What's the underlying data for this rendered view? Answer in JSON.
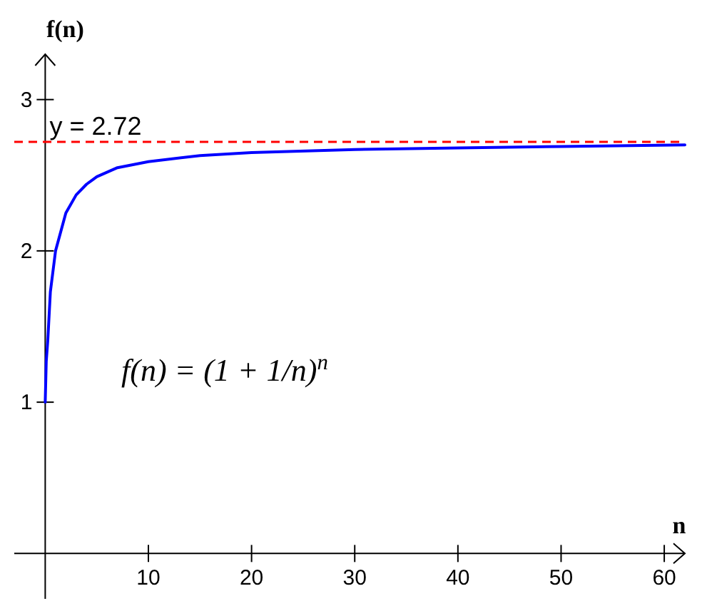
{
  "chart_data": {
    "type": "line",
    "xlabel": "n",
    "ylabel": "f(n)",
    "x": [
      0,
      0.1,
      0.25,
      0.5,
      1,
      2,
      3,
      4,
      5,
      7,
      10,
      15,
      20,
      30,
      40,
      50,
      62
    ],
    "series": [
      {
        "color": "#0000ff",
        "values": [
          1,
          1.27,
          1.41,
          1.73,
          2,
          2.25,
          2.37,
          2.44,
          2.49,
          2.55,
          2.59,
          2.63,
          2.65,
          2.67,
          2.68,
          2.69,
          2.7
        ]
      }
    ],
    "xlim": [
      -3,
      62
    ],
    "ylim": [
      -0.3,
      3.3
    ],
    "xticks": [
      10,
      20,
      30,
      40,
      50,
      60
    ],
    "yticks": [
      1,
      2,
      3
    ],
    "ref_lines": [
      {
        "axis": "y",
        "value": 2.72,
        "label": "y = 2.72",
        "color": "#ff0000",
        "line_style": "dashed"
      }
    ],
    "annotations": [
      "f(n) = (1 + 1/n)$^{n}$"
    ],
    "grid": false,
    "marker": "none",
    "line_style": "solid"
  }
}
